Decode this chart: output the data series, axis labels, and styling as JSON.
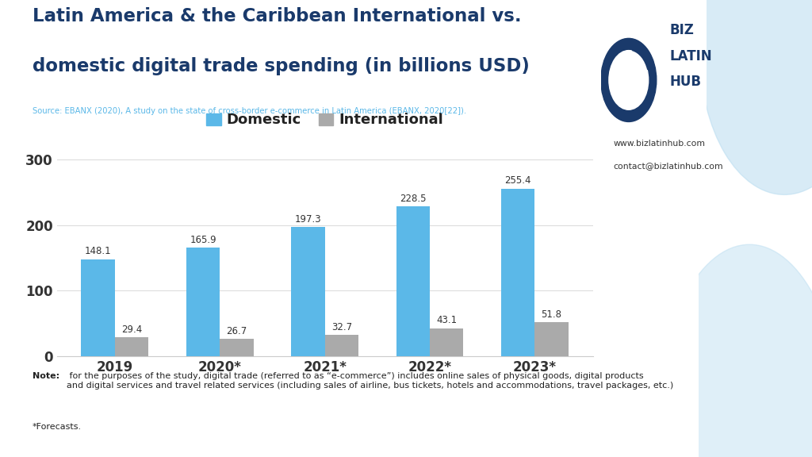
{
  "title_line1": "Latin America & the Caribbean International vs.",
  "title_line2": "domestic digital trade spending (in billions USD)",
  "source": "Source: EBANX (2020), A study on the state of cross-border e-commerce in Latin America (EBANX, 2020[22]).",
  "categories": [
    "2019",
    "2020*",
    "2021*",
    "2022*",
    "2023*"
  ],
  "domestic": [
    148.1,
    165.9,
    197.3,
    228.5,
    255.4
  ],
  "international": [
    29.4,
    26.7,
    32.7,
    43.1,
    51.8
  ],
  "domestic_color": "#5BB8E8",
  "international_color": "#AAAAAA",
  "background_color": "#FFFFFF",
  "title_color": "#1A3A6B",
  "source_color": "#5BB8E8",
  "ylabel_ticks": [
    0,
    100,
    200,
    300
  ],
  "ylim": [
    0,
    320
  ],
  "bar_width": 0.32,
  "note_bold": "Note:",
  "note_text": " for the purposes of the study, digital trade (referred to as “e-commerce”) includes online sales of physical goods, digital products\nand digital services and travel related services (including sales of airline, bus tickets, hotels and accommodations, travel packages, etc.)",
  "forecasts_text": "*Forecasts.",
  "legend_domestic": "Domestic",
  "legend_international": "International",
  "website": "www.bizlatinhub.com",
  "contact": "contact@bizlatinhub.com",
  "biz_color": "#1A3A6B",
  "latin_color": "#1A3A6B",
  "hub_color": "#1A3A6B",
  "deco_color": "#B8DCF0"
}
